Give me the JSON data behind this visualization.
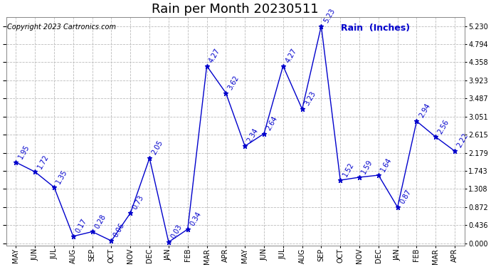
{
  "title": "Rain per Month 20230511",
  "copyright": "Copyright 2023 Cartronics.com",
  "legend_label": "Rain  (Inches)",
  "months": [
    "MAY",
    "JUN",
    "JUL",
    "AUG",
    "SEP",
    "OCT",
    "NOV",
    "DEC",
    "JAN",
    "FEB",
    "MAR",
    "APR",
    "MAY",
    "JUN",
    "JUL",
    "AUG",
    "SEP",
    "OCT",
    "NOV",
    "DEC",
    "JAN",
    "FEB",
    "MAR",
    "APR"
  ],
  "values": [
    1.95,
    1.72,
    1.35,
    0.17,
    0.28,
    0.06,
    0.73,
    2.05,
    0.03,
    0.34,
    4.27,
    3.62,
    2.34,
    2.64,
    4.27,
    3.23,
    5.23,
    1.52,
    1.59,
    1.64,
    0.87,
    2.94,
    2.56,
    2.22
  ],
  "line_color": "#0000cc",
  "background_color": "#ffffff",
  "grid_color": "#bbbbbb",
  "ylim": [
    -0.05,
    5.45
  ],
  "yticks": [
    0.0,
    0.436,
    0.872,
    1.308,
    1.743,
    2.179,
    2.615,
    3.051,
    3.487,
    3.923,
    4.358,
    4.794,
    5.23
  ],
  "title_fontsize": 13,
  "copyright_fontsize": 7,
  "legend_fontsize": 9,
  "tick_fontsize": 7,
  "annotation_fontsize": 7
}
